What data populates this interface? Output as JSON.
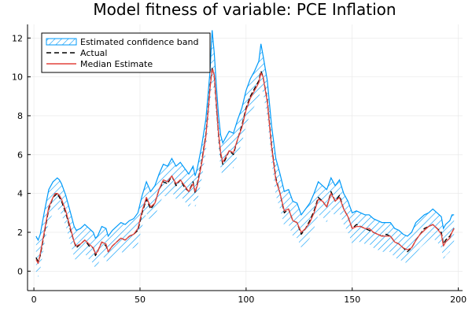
{
  "chart_data": {
    "type": "line",
    "title": "Model fitness of variable: PCE Inflation",
    "xlabel": "",
    "ylabel": "",
    "xlim": [
      -3,
      202
    ],
    "ylim": [
      -1,
      12.7
    ],
    "x_ticks": [
      0,
      50,
      100,
      150,
      200
    ],
    "y_ticks": [
      0,
      2,
      4,
      6,
      8,
      10,
      12
    ],
    "grid": true,
    "legend_position": "top-left",
    "x": [
      1,
      2,
      3,
      5,
      7,
      9,
      10,
      11,
      12,
      13,
      15,
      17,
      19,
      20,
      22,
      24,
      26,
      28,
      29,
      30,
      32,
      34,
      35,
      37,
      39,
      41,
      43,
      45,
      47,
      49,
      51,
      53,
      55,
      57,
      59,
      61,
      63,
      65,
      67,
      69,
      71,
      73,
      75,
      76,
      77,
      79,
      81,
      82,
      83,
      84,
      85,
      86,
      87,
      88,
      89,
      90,
      92,
      94,
      96,
      98,
      100,
      102,
      104,
      106,
      107,
      108,
      110,
      112,
      114,
      116,
      118,
      120,
      122,
      124,
      126,
      128,
      130,
      132,
      134,
      136,
      138,
      140,
      142,
      144,
      146,
      148,
      150,
      152,
      154,
      156,
      158,
      160,
      162,
      164,
      166,
      168,
      170,
      172,
      174,
      176,
      178,
      180,
      182,
      184,
      186,
      188,
      190,
      192,
      193,
      194,
      196,
      197,
      198
    ],
    "series": [
      {
        "name": "Actual",
        "color": "#000000",
        "style": "dashed",
        "values": [
          0.7,
          0.5,
          0.8,
          2.0,
          3.2,
          3.8,
          3.9,
          4.0,
          3.8,
          3.6,
          3.0,
          2.2,
          1.5,
          1.2,
          1.4,
          1.6,
          1.3,
          1.2,
          0.8,
          1.0,
          1.5,
          1.3,
          1.0,
          1.3,
          1.5,
          1.7,
          1.6,
          1.8,
          1.9,
          2.1,
          3.0,
          3.7,
          3.2,
          3.5,
          4.2,
          4.6,
          4.5,
          4.9,
          4.4,
          4.7,
          4.3,
          4.1,
          4.6,
          4.0,
          4.5,
          5.6,
          7.0,
          8.2,
          9.5,
          10.5,
          10.0,
          8.5,
          7.0,
          6.0,
          5.5,
          5.7,
          6.2,
          6.0,
          6.8,
          7.5,
          8.4,
          9.0,
          9.4,
          9.8,
          10.3,
          10.0,
          8.8,
          6.5,
          4.8,
          4.0,
          3.0,
          3.2,
          2.6,
          2.5,
          1.9,
          2.2,
          2.6,
          3.1,
          3.8,
          3.6,
          3.3,
          4.1,
          3.6,
          3.9,
          3.2,
          2.8,
          2.2,
          2.4,
          2.3,
          2.2,
          2.1,
          2.0,
          1.9,
          1.8,
          1.9,
          1.8,
          1.5,
          1.4,
          1.2,
          1.0,
          1.2,
          1.6,
          1.9,
          2.2,
          2.3,
          2.4,
          2.2,
          2.0,
          1.4,
          1.6,
          1.8,
          2.0,
          2.2
        ]
      },
      {
        "name": "Median Estimate",
        "color": "#e2423c",
        "style": "solid",
        "values": [
          0.6,
          0.4,
          0.9,
          2.1,
          3.3,
          3.8,
          4.0,
          4.0,
          3.9,
          3.7,
          3.1,
          2.3,
          1.5,
          1.3,
          1.4,
          1.6,
          1.4,
          1.2,
          0.9,
          1.0,
          1.5,
          1.4,
          1.0,
          1.3,
          1.5,
          1.7,
          1.6,
          1.8,
          1.9,
          2.2,
          3.1,
          3.8,
          3.3,
          3.5,
          4.2,
          4.7,
          4.6,
          4.9,
          4.5,
          4.7,
          4.4,
          4.1,
          4.5,
          4.1,
          4.4,
          5.5,
          6.9,
          8.1,
          9.4,
          10.4,
          10.1,
          8.6,
          7.1,
          6.1,
          5.6,
          5.8,
          6.2,
          6.1,
          6.8,
          7.4,
          8.3,
          8.9,
          9.3,
          9.7,
          10.2,
          10.0,
          8.7,
          6.4,
          4.7,
          4.0,
          3.1,
          3.2,
          2.6,
          2.5,
          2.0,
          2.2,
          2.5,
          3.0,
          3.7,
          3.6,
          3.3,
          4.0,
          3.6,
          3.8,
          3.2,
          2.8,
          2.2,
          2.3,
          2.3,
          2.2,
          2.2,
          2.0,
          1.9,
          1.8,
          1.8,
          1.8,
          1.5,
          1.4,
          1.2,
          1.1,
          1.2,
          1.6,
          1.9,
          2.1,
          2.3,
          2.4,
          2.2,
          1.9,
          1.3,
          1.5,
          1.7,
          2.0,
          2.2
        ]
      }
    ],
    "band": {
      "name": "Estimated confidence band",
      "color": "#009af9",
      "lower": [
        -0.1,
        -0.3,
        0.1,
        1.4,
        2.5,
        3.0,
        3.2,
        3.2,
        3.1,
        2.9,
        2.3,
        1.5,
        0.7,
        0.5,
        0.7,
        0.9,
        0.6,
        0.4,
        0.1,
        0.3,
        0.8,
        0.6,
        0.3,
        0.6,
        0.8,
        1.0,
        0.9,
        1.1,
        1.2,
        1.4,
        2.3,
        3.0,
        2.5,
        2.8,
        3.4,
        3.9,
        3.8,
        4.1,
        3.7,
        3.9,
        3.6,
        3.3,
        3.7,
        3.3,
        3.6,
        4.7,
        6.1,
        7.3,
        8.6,
        9.6,
        9.3,
        7.8,
        6.3,
        5.3,
        4.8,
        5.0,
        5.4,
        5.3,
        6.0,
        6.6,
        7.5,
        8.1,
        8.5,
        8.9,
        9.4,
        9.2,
        7.9,
        5.6,
        3.9,
        3.2,
        2.3,
        2.4,
        1.8,
        1.7,
        1.2,
        1.4,
        1.7,
        2.2,
        2.9,
        2.8,
        2.5,
        3.2,
        2.8,
        3.0,
        2.4,
        2.0,
        1.4,
        1.5,
        1.5,
        1.4,
        1.4,
        1.2,
        1.1,
        1.0,
        1.0,
        1.0,
        0.7,
        0.6,
        0.5,
        0.4,
        0.5,
        0.9,
        1.2,
        1.4,
        1.6,
        1.7,
        1.5,
        1.2,
        0.6,
        0.8,
        1.0,
        1.3,
        1.5
      ],
      "upper": [
        1.8,
        1.6,
        1.9,
        3.1,
        4.2,
        4.6,
        4.7,
        4.8,
        4.7,
        4.5,
        3.9,
        3.1,
        2.3,
        2.1,
        2.2,
        2.4,
        2.2,
        2.0,
        1.7,
        1.8,
        2.3,
        2.2,
        1.8,
        2.1,
        2.3,
        2.5,
        2.4,
        2.6,
        2.7,
        3.0,
        3.9,
        4.6,
        4.1,
        4.4,
        5.0,
        5.5,
        5.4,
        5.8,
        5.4,
        5.6,
        5.3,
        5.0,
        5.4,
        4.9,
        5.3,
        6.4,
        7.8,
        9.0,
        10.3,
        12.4,
        11.2,
        9.5,
        8.0,
        7.0,
        6.6,
        6.8,
        7.2,
        7.1,
        7.8,
        8.4,
        9.3,
        9.9,
        10.3,
        10.8,
        11.7,
        11.1,
        9.8,
        7.5,
        5.8,
        5.0,
        4.1,
        4.2,
        3.6,
        3.5,
        2.9,
        3.2,
        3.5,
        4.0,
        4.6,
        4.4,
        4.2,
        4.8,
        4.4,
        4.7,
        4.0,
        3.6,
        3.0,
        3.1,
        3.0,
        2.9,
        2.9,
        2.7,
        2.6,
        2.5,
        2.5,
        2.5,
        2.2,
        2.1,
        1.9,
        1.8,
        2.0,
        2.5,
        2.7,
        2.9,
        3.0,
        3.2,
        3.0,
        2.8,
        2.2,
        2.4,
        2.6,
        2.9,
        2.9
      ]
    }
  }
}
